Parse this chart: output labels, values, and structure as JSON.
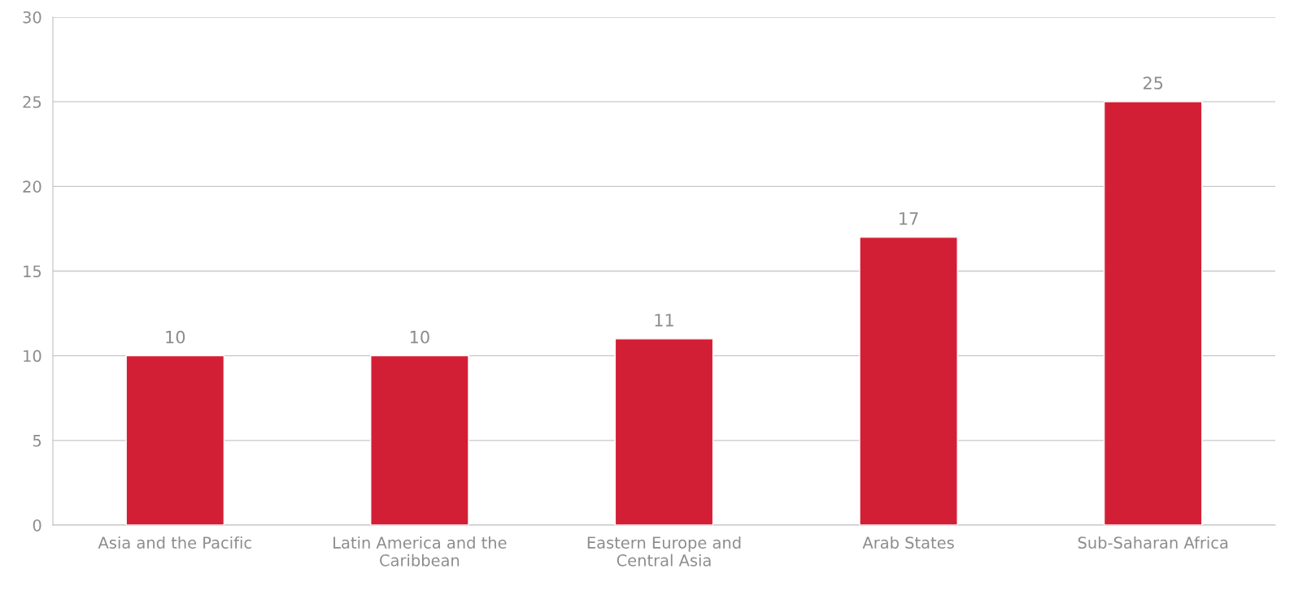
{
  "chart_data": {
    "type": "bar",
    "categories": [
      "Asia and the Pacific",
      "Latin America and the Caribbean",
      "Eastern Europe and Central Asia",
      "Arab States",
      "Sub-Saharan Africa"
    ],
    "values": [
      10,
      10,
      11,
      17,
      25
    ],
    "color": "#d31f36",
    "ylim": [
      0,
      30
    ],
    "yticks": [
      0,
      5,
      10,
      15,
      20,
      25,
      30
    ],
    "grid": "y",
    "data_labels": true,
    "legend": false
  }
}
